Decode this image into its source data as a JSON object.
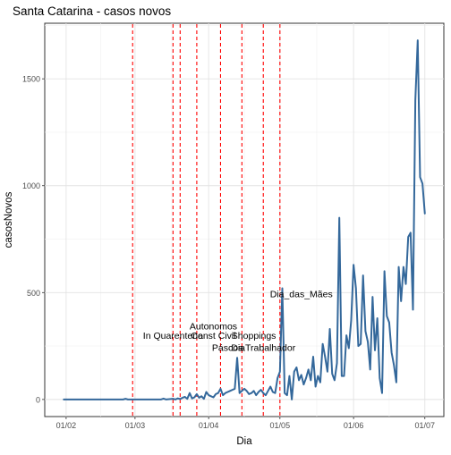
{
  "chart_data": {
    "type": "line",
    "title": "Santa Catarina - casos novos",
    "xlabel": "Dia",
    "ylabel": "casosNovos",
    "ylim": [
      -80,
      1760
    ],
    "yticks": [
      0,
      500,
      1000,
      1500
    ],
    "xlim": [
      "2020-01-23",
      "2020-07-09"
    ],
    "xticks": [
      {
        "date": "2020-02-01",
        "label": "01/02"
      },
      {
        "date": "2020-03-01",
        "label": "01/03"
      },
      {
        "date": "2020-04-01",
        "label": "01/04"
      },
      {
        "date": "2020-05-01",
        "label": "01/05"
      },
      {
        "date": "2020-06-01",
        "label": "01/06"
      },
      {
        "date": "2020-07-01",
        "label": "01/07"
      }
    ],
    "grid": true,
    "line_color": "#34689b",
    "vline_color": "#ff0000",
    "series": [
      {
        "values": [
          [
            "2020-01-31",
            0
          ],
          [
            "2020-02-15",
            0
          ],
          [
            "2020-02-25",
            0
          ],
          [
            "2020-02-26",
            3
          ],
          [
            "2020-02-27",
            0
          ],
          [
            "2020-03-12",
            0
          ],
          [
            "2020-03-13",
            4
          ],
          [
            "2020-03-14",
            0
          ],
          [
            "2020-03-16",
            2
          ],
          [
            "2020-03-17",
            3
          ],
          [
            "2020-03-18",
            0
          ],
          [
            "2020-03-19",
            5
          ],
          [
            "2020-03-20",
            2
          ],
          [
            "2020-03-21",
            8
          ],
          [
            "2020-03-22",
            12
          ],
          [
            "2020-03-23",
            3
          ],
          [
            "2020-03-24",
            30
          ],
          [
            "2020-03-25",
            5
          ],
          [
            "2020-03-26",
            10
          ],
          [
            "2020-03-27",
            25
          ],
          [
            "2020-03-28",
            8
          ],
          [
            "2020-03-29",
            15
          ],
          [
            "2020-03-30",
            3
          ],
          [
            "2020-03-31",
            35
          ],
          [
            "2020-04-01",
            20
          ],
          [
            "2020-04-02",
            15
          ],
          [
            "2020-04-03",
            10
          ],
          [
            "2020-04-04",
            25
          ],
          [
            "2020-04-05",
            30
          ],
          [
            "2020-04-06",
            50
          ],
          [
            "2020-04-07",
            20
          ],
          [
            "2020-04-08",
            30
          ],
          [
            "2020-04-09",
            35
          ],
          [
            "2020-04-10",
            40
          ],
          [
            "2020-04-11",
            45
          ],
          [
            "2020-04-12",
            50
          ],
          [
            "2020-04-13",
            195
          ],
          [
            "2020-04-14",
            30
          ],
          [
            "2020-04-15",
            40
          ],
          [
            "2020-04-16",
            50
          ],
          [
            "2020-04-17",
            40
          ],
          [
            "2020-04-18",
            25
          ],
          [
            "2020-04-19",
            30
          ],
          [
            "2020-04-20",
            40
          ],
          [
            "2020-04-21",
            20
          ],
          [
            "2020-04-22",
            35
          ],
          [
            "2020-04-23",
            45
          ],
          [
            "2020-04-24",
            30
          ],
          [
            "2020-04-25",
            20
          ],
          [
            "2020-04-26",
            40
          ],
          [
            "2020-04-27",
            60
          ],
          [
            "2020-04-28",
            35
          ],
          [
            "2020-04-29",
            30
          ],
          [
            "2020-04-30",
            100
          ],
          [
            "2020-05-01",
            130
          ],
          [
            "2020-05-02",
            520
          ],
          [
            "2020-05-03",
            30
          ],
          [
            "2020-05-04",
            20
          ],
          [
            "2020-05-05",
            110
          ],
          [
            "2020-05-06",
            0
          ],
          [
            "2020-05-07",
            130
          ],
          [
            "2020-05-08",
            150
          ],
          [
            "2020-05-09",
            90
          ],
          [
            "2020-05-10",
            115
          ],
          [
            "2020-05-11",
            70
          ],
          [
            "2020-05-12",
            100
          ],
          [
            "2020-05-13",
            140
          ],
          [
            "2020-05-14",
            90
          ],
          [
            "2020-05-15",
            200
          ],
          [
            "2020-05-16",
            60
          ],
          [
            "2020-05-17",
            110
          ],
          [
            "2020-05-18",
            80
          ],
          [
            "2020-05-19",
            260
          ],
          [
            "2020-05-20",
            200
          ],
          [
            "2020-05-21",
            130
          ],
          [
            "2020-05-22",
            330
          ],
          [
            "2020-05-23",
            120
          ],
          [
            "2020-05-24",
            90
          ],
          [
            "2020-05-25",
            170
          ],
          [
            "2020-05-26",
            850
          ],
          [
            "2020-05-27",
            110
          ],
          [
            "2020-05-28",
            110
          ],
          [
            "2020-05-29",
            300
          ],
          [
            "2020-05-30",
            240
          ],
          [
            "2020-05-31",
            370
          ],
          [
            "2020-06-01",
            630
          ],
          [
            "2020-06-02",
            520
          ],
          [
            "2020-06-03",
            250
          ],
          [
            "2020-06-04",
            260
          ],
          [
            "2020-06-05",
            580
          ],
          [
            "2020-06-06",
            320
          ],
          [
            "2020-06-07",
            270
          ],
          [
            "2020-06-08",
            140
          ],
          [
            "2020-06-09",
            480
          ],
          [
            "2020-06-10",
            230
          ],
          [
            "2020-06-11",
            380
          ],
          [
            "2020-06-12",
            100
          ],
          [
            "2020-06-13",
            30
          ],
          [
            "2020-06-14",
            600
          ],
          [
            "2020-06-15",
            390
          ],
          [
            "2020-06-16",
            360
          ],
          [
            "2020-06-17",
            220
          ],
          [
            "2020-06-18",
            160
          ],
          [
            "2020-06-19",
            80
          ],
          [
            "2020-06-20",
            620
          ],
          [
            "2020-06-21",
            460
          ],
          [
            "2020-06-22",
            620
          ],
          [
            "2020-06-23",
            540
          ],
          [
            "2020-06-24",
            760
          ],
          [
            "2020-06-25",
            780
          ],
          [
            "2020-06-26",
            420
          ],
          [
            "2020-06-27",
            1400
          ],
          [
            "2020-06-28",
            1680
          ],
          [
            "2020-06-29",
            1040
          ],
          [
            "2020-06-30",
            1010
          ],
          [
            "2020-07-01",
            870
          ]
        ]
      }
    ],
    "vlines": [
      {
        "date": "2020-02-29"
      },
      {
        "date": "2020-03-17"
      },
      {
        "date": "2020-03-20"
      },
      {
        "date": "2020-03-27"
      },
      {
        "date": "2020-04-06"
      },
      {
        "date": "2020-04-15"
      },
      {
        "date": "2020-04-24"
      },
      {
        "date": "2020-05-01"
      }
    ],
    "annotations": [
      {
        "text": "In Quarentena",
        "date": "2020-03-17",
        "y": 300
      },
      {
        "text": "Autonomos",
        "date": "2020-04-03",
        "y": 345
      },
      {
        "text": "Const Civil",
        "date": "2020-04-03",
        "y": 300
      },
      {
        "text": "Shoppings",
        "date": "2020-04-20",
        "y": 300
      },
      {
        "text": "Páscoa",
        "date": "2020-04-09",
        "y": 245
      },
      {
        "text": "DiaTrabalhador",
        "date": "2020-04-24",
        "y": 245
      },
      {
        "text": "Dia_das_Mães",
        "date": "2020-05-10",
        "y": 495
      }
    ]
  }
}
